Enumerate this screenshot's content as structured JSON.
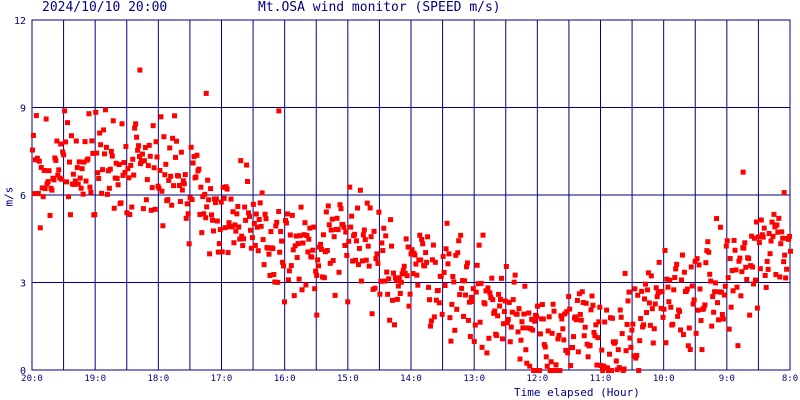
{
  "header": {
    "timestamp": "2024/10/10 20:00",
    "title": "Mt.OSA wind monitor (SPEED m/s)"
  },
  "chart_data": {
    "type": "scatter",
    "title": "Mt.OSA wind monitor (SPEED m/s)",
    "xlabel": "Time elapsed (Hour)",
    "ylabel": "m/s",
    "ylim": [
      0,
      12
    ],
    "xlim": [
      0,
      12
    ],
    "x_reversed_hours": true,
    "y_ticks": [
      0,
      3,
      6,
      9,
      12
    ],
    "x_tick_labels": [
      "20:0",
      "19:0",
      "18:0",
      "17:0",
      "16:0",
      "15:0",
      "14:0",
      "13:0",
      "12:0",
      "11:0",
      "10:0",
      "9:0",
      "8:0"
    ],
    "grid": true,
    "colors": {
      "background": "#ffffff",
      "grid": "#000080",
      "points": "#ff0000",
      "text": "#000080"
    },
    "series_profile": [
      {
        "hours_elapsed": 0.0,
        "speed": 6.7
      },
      {
        "hours_elapsed": 0.5,
        "speed": 6.6
      },
      {
        "hours_elapsed": 1.0,
        "speed": 7.2
      },
      {
        "hours_elapsed": 1.5,
        "speed": 7.0
      },
      {
        "hours_elapsed": 2.0,
        "speed": 7.3
      },
      {
        "hours_elapsed": 2.5,
        "speed": 6.4
      },
      {
        "hours_elapsed": 3.0,
        "speed": 5.4
      },
      {
        "hours_elapsed": 3.5,
        "speed": 4.6
      },
      {
        "hours_elapsed": 4.0,
        "speed": 4.2
      },
      {
        "hours_elapsed": 4.5,
        "speed": 3.9
      },
      {
        "hours_elapsed": 5.0,
        "speed": 4.5
      },
      {
        "hours_elapsed": 5.5,
        "speed": 3.4
      },
      {
        "hours_elapsed": 6.0,
        "speed": 3.6
      },
      {
        "hours_elapsed": 6.5,
        "speed": 3.3
      },
      {
        "hours_elapsed": 7.0,
        "speed": 2.6
      },
      {
        "hours_elapsed": 7.5,
        "speed": 2.0
      },
      {
        "hours_elapsed": 8.0,
        "speed": 1.4
      },
      {
        "hours_elapsed": 8.5,
        "speed": 1.3
      },
      {
        "hours_elapsed": 9.0,
        "speed": 1.0
      },
      {
        "hours_elapsed": 9.5,
        "speed": 1.2
      },
      {
        "hours_elapsed": 10.0,
        "speed": 2.4
      },
      {
        "hours_elapsed": 10.5,
        "speed": 2.6
      },
      {
        "hours_elapsed": 11.0,
        "speed": 3.0
      },
      {
        "hours_elapsed": 11.5,
        "speed": 3.8
      },
      {
        "hours_elapsed": 12.0,
        "speed": 4.6
      }
    ],
    "spread": 0.9,
    "outliers": [
      {
        "hours_elapsed": 1.7,
        "speed": 10.3
      },
      {
        "hours_elapsed": 2.75,
        "speed": 9.5
      },
      {
        "hours_elapsed": 3.9,
        "speed": 8.9
      },
      {
        "hours_elapsed": 4.5,
        "speed": 1.9
      },
      {
        "hours_elapsed": 11.25,
        "speed": 6.8
      },
      {
        "hours_elapsed": 11.9,
        "speed": 6.1
      }
    ],
    "point_count": 780
  }
}
